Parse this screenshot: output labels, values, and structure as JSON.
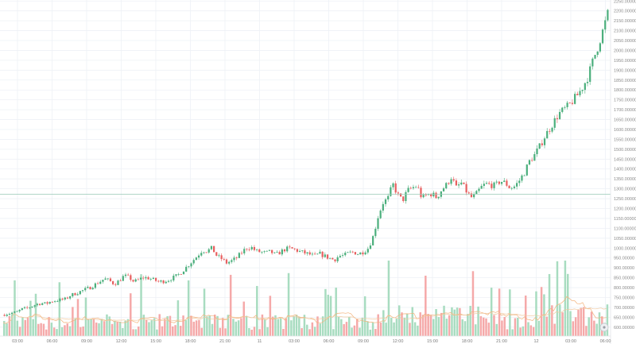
{
  "colors": {
    "background": "#ffffff",
    "grid": "#eef1f6",
    "up": "#4caf7d",
    "down": "#e86060",
    "volume_up": "#a8dcc0",
    "volume_down": "#f5a9a9",
    "ma": "#f3b27a",
    "last_price_line": "#97c9b5",
    "axis_text": "#7b7b7b"
  },
  "scale_settings_icon": "gear-icon",
  "chart_data": {
    "type": "candlestick",
    "title": "",
    "xlabel": "",
    "ylabel": "",
    "ylim": [
      555,
      2255
    ],
    "grid": true,
    "price_ticks": [
      "2250.00000",
      "2200.00000",
      "2150.00000",
      "2100.00000",
      "2050.00000",
      "2000.00000",
      "1950.00000",
      "1900.00000",
      "1850.00000",
      "1800.00000",
      "1750.00000",
      "1700.00000",
      "1650.00000",
      "1600.00000",
      "1550.00000",
      "1500.00000",
      "1450.00000",
      "1400.00000",
      "1350.00000",
      "1300.00000",
      "1250.00000",
      "1200.00000",
      "1150.00000",
      "1100.00000",
      "1050.00000",
      "1000.00000",
      "950.00000",
      "900.00000",
      "850.00000",
      "800.00000",
      "750.00000",
      "700.00000",
      "650.00000",
      "600.00000"
    ],
    "time_ticks": [
      "03:00",
      "06:00",
      "09:00",
      "12:00",
      "15:00",
      "18:00",
      "21:00",
      "11",
      "03:00",
      "06:00",
      "09:00",
      "12:00",
      "15:00",
      "18:00",
      "21:00",
      "12",
      "03:00",
      "06:00"
    ],
    "last_price": 1272,
    "price_path": [
      [
        0,
        662
      ],
      [
        0.5,
        668
      ],
      [
        1,
        672
      ],
      [
        1.5,
        675
      ],
      [
        2,
        690
      ],
      [
        2.5,
        695
      ],
      [
        3,
        705
      ],
      [
        3.5,
        715
      ],
      [
        4,
        722
      ],
      [
        4.5,
        718
      ],
      [
        5,
        730
      ],
      [
        5.5,
        735
      ],
      [
        6,
        738
      ],
      [
        6.5,
        742
      ],
      [
        7,
        760
      ],
      [
        7.5,
        770
      ],
      [
        8,
        780
      ],
      [
        8.5,
        790
      ],
      [
        9,
        800
      ],
      [
        9.5,
        815
      ],
      [
        10,
        830
      ],
      [
        10.5,
        845
      ],
      [
        11,
        835
      ],
      [
        11.5,
        818
      ],
      [
        12,
        835
      ],
      [
        12.5,
        860
      ],
      [
        13,
        852
      ],
      [
        13.5,
        830
      ],
      [
        14,
        840
      ],
      [
        14.5,
        852
      ],
      [
        15,
        848
      ],
      [
        15.5,
        840
      ],
      [
        16,
        830
      ],
      [
        16.5,
        832
      ],
      [
        17,
        838
      ],
      [
        17.5,
        850
      ],
      [
        18,
        862
      ],
      [
        18.5,
        885
      ],
      [
        19,
        910
      ],
      [
        19.5,
        935
      ],
      [
        20,
        960
      ],
      [
        20.5,
        990
      ],
      [
        21,
        985
      ],
      [
        21.5,
        1000
      ],
      [
        22,
        960
      ],
      [
        22.5,
        945
      ],
      [
        23,
        925
      ],
      [
        23.5,
        935
      ],
      [
        24,
        950
      ],
      [
        24.5,
        975
      ],
      [
        25,
        1000
      ],
      [
        25.5,
        1005
      ],
      [
        26,
        985
      ],
      [
        26.5,
        980
      ],
      [
        27,
        975
      ],
      [
        27.5,
        982
      ],
      [
        28,
        965
      ],
      [
        28.5,
        980
      ],
      [
        29,
        995
      ],
      [
        29.5,
        998
      ],
      [
        30,
        992
      ],
      [
        30.5,
        982
      ],
      [
        31,
        975
      ],
      [
        31.5,
        968
      ],
      [
        32,
        958
      ],
      [
        32.5,
        972
      ],
      [
        33,
        960
      ],
      [
        33.5,
        950
      ],
      [
        34,
        940
      ],
      [
        34.5,
        960
      ],
      [
        35,
        962
      ],
      [
        35.5,
        975
      ],
      [
        36,
        980
      ],
      [
        36.5,
        970
      ],
      [
        37,
        982
      ],
      [
        37.5,
        1000
      ],
      [
        38,
        1060
      ],
      [
        38.5,
        1160
      ],
      [
        39,
        1230
      ],
      [
        39.5,
        1250
      ],
      [
        40,
        1325
      ],
      [
        40.5,
        1270
      ],
      [
        41,
        1240
      ],
      [
        41.5,
        1290
      ],
      [
        42,
        1305
      ],
      [
        42.5,
        1315
      ],
      [
        43,
        1250
      ],
      [
        43.5,
        1270
      ],
      [
        44,
        1275
      ],
      [
        44.5,
        1255
      ],
      [
        45,
        1295
      ],
      [
        45.5,
        1320
      ],
      [
        46,
        1360
      ],
      [
        46.5,
        1305
      ],
      [
        47,
        1330
      ],
      [
        47.5,
        1290
      ],
      [
        48,
        1255
      ],
      [
        48.5,
        1270
      ],
      [
        49,
        1305
      ],
      [
        49.5,
        1325
      ],
      [
        50,
        1320
      ],
      [
        50.5,
        1315
      ],
      [
        51,
        1340
      ],
      [
        51.5,
        1330
      ],
      [
        52,
        1305
      ],
      [
        52.5,
        1312
      ],
      [
        53,
        1345
      ],
      [
        53.5,
        1385
      ],
      [
        54,
        1440
      ],
      [
        54.5,
        1470
      ],
      [
        55,
        1510
      ],
      [
        55.5,
        1560
      ],
      [
        56,
        1600
      ],
      [
        56.5,
        1640
      ],
      [
        57,
        1680
      ],
      [
        57.5,
        1700
      ],
      [
        58,
        1720
      ],
      [
        58.5,
        1750
      ],
      [
        59,
        1780
      ],
      [
        59.5,
        1820
      ],
      [
        60,
        1870
      ],
      [
        60.5,
        1950
      ],
      [
        61,
        2020
      ],
      [
        61.5,
        2100
      ],
      [
        62,
        2185
      ]
    ],
    "candle_count": 240,
    "volume_bar_count": 230
  }
}
